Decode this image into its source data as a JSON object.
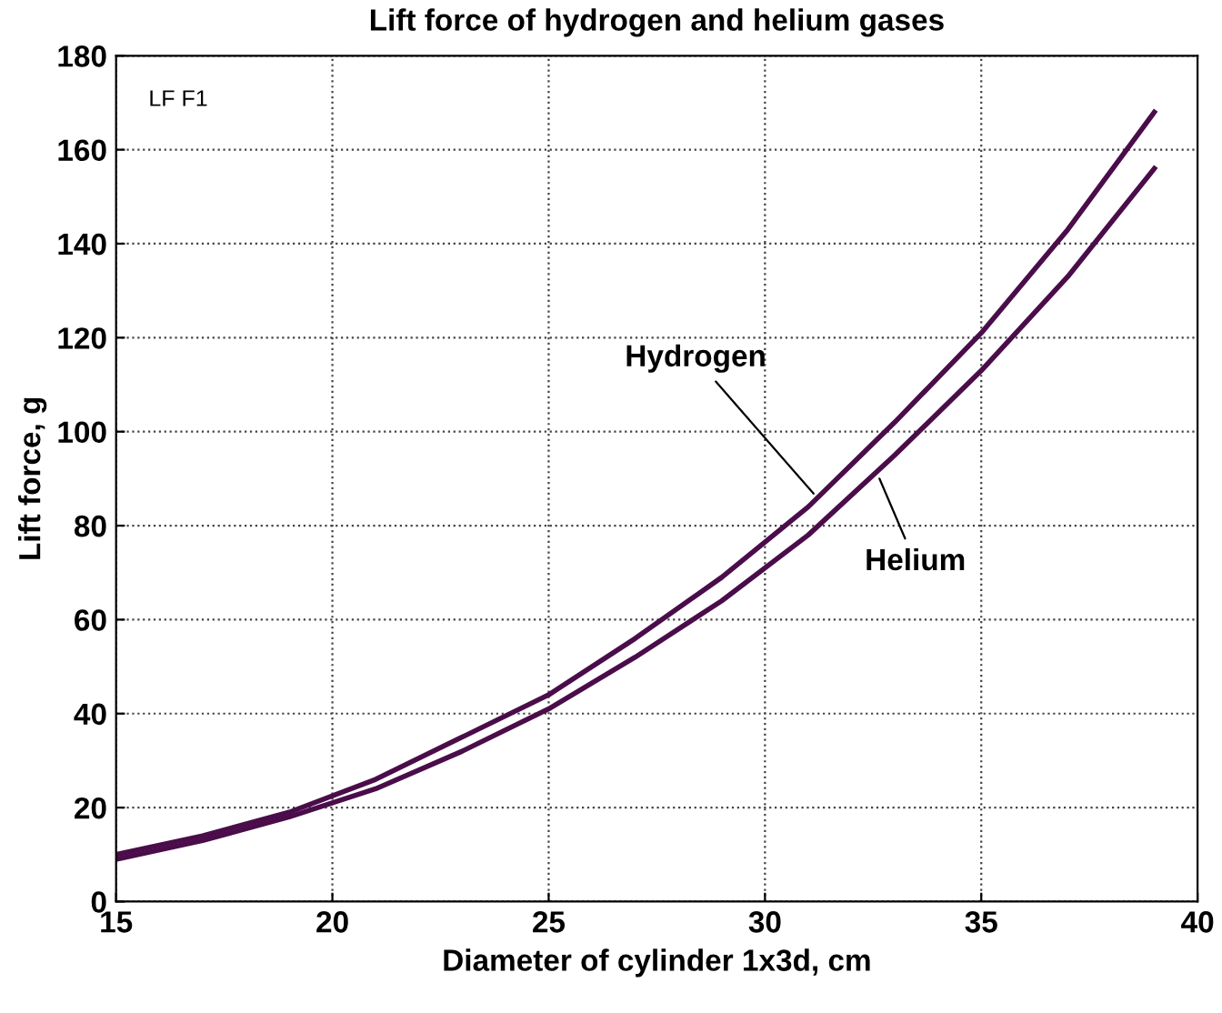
{
  "chart_data": {
    "type": "line",
    "title": "Lift force of hydrogen and helium gases",
    "xlabel": "Diameter of cylinder 1x3d, cm",
    "ylabel": "Lift force, g",
    "x": [
      15,
      17,
      19,
      21,
      23,
      25,
      27,
      29,
      31,
      33,
      35,
      37,
      39
    ],
    "series": [
      {
        "color": "#4a0d4a",
        "values": [
          10,
          14,
          19,
          26,
          35,
          44,
          56,
          69,
          84,
          102,
          121,
          143,
          168
        ]
      },
      {
        "color": "#4a0d4a",
        "values": [
          9,
          13,
          18,
          24,
          32,
          41,
          52,
          64,
          78,
          95,
          113,
          133,
          156
        ]
      }
    ],
    "xlim": [
      15,
      40
    ],
    "ylim": [
      0,
      180
    ],
    "xticks": [
      15,
      20,
      25,
      30,
      35,
      40
    ],
    "yticks": [
      0,
      20,
      40,
      60,
      80,
      100,
      120,
      140,
      160,
      180
    ],
    "grid": true,
    "legend": false,
    "marker": "none",
    "line_style": "solid",
    "annotations": [
      "LF F1",
      {
        "text": "Hydrogen",
        "x": 31.2,
        "y": 86
      },
      {
        "text": "Helium",
        "x": 32.6,
        "y": 91
      }
    ]
  }
}
